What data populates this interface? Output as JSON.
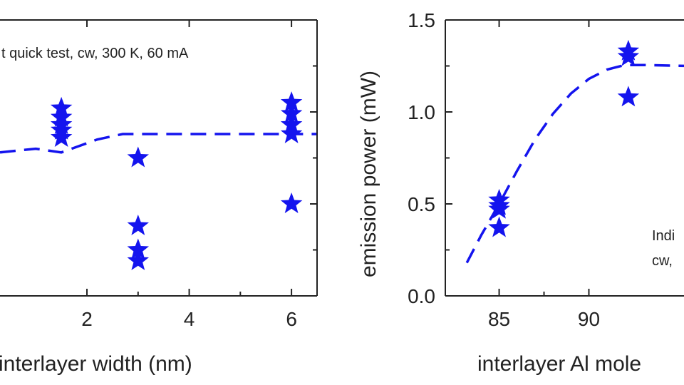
{
  "colors": {
    "marker": "#1414ee",
    "axis": "#222222"
  },
  "chart_data": [
    {
      "type": "scatter",
      "title": "",
      "xlabel": "interlayer width (nm)",
      "ylabel": "",
      "annotation": "t quick test, cw, 300 K, 60 mA",
      "xlim": [
        0.3,
        6.5
      ],
      "ylim": [
        0.0,
        1.5
      ],
      "xticks": [
        {
          "value": 2,
          "label": "2"
        },
        {
          "value": 4,
          "label": "4"
        },
        {
          "value": 6,
          "label": "6"
        }
      ],
      "yticks": [
        0.5,
        1.0
      ],
      "marker": "star",
      "points": [
        {
          "x": 1.5,
          "y": 1.02
        },
        {
          "x": 1.5,
          "y": 0.97
        },
        {
          "x": 1.5,
          "y": 0.93
        },
        {
          "x": 1.5,
          "y": 0.9
        },
        {
          "x": 1.5,
          "y": 0.86
        },
        {
          "x": 3.0,
          "y": 0.75
        },
        {
          "x": 3.0,
          "y": 0.38
        },
        {
          "x": 3.0,
          "y": 0.25
        },
        {
          "x": 3.0,
          "y": 0.19
        },
        {
          "x": 6.0,
          "y": 1.05
        },
        {
          "x": 6.0,
          "y": 0.99
        },
        {
          "x": 6.0,
          "y": 0.93
        },
        {
          "x": 6.0,
          "y": 0.88
        },
        {
          "x": 6.0,
          "y": 0.5
        }
      ],
      "fit": {
        "style": "dashed",
        "points": [
          {
            "x": 0.3,
            "y": 0.78
          },
          {
            "x": 1.0,
            "y": 0.8
          },
          {
            "x": 1.5,
            "y": 0.78
          },
          {
            "x": 1.8,
            "y": 0.81
          },
          {
            "x": 2.2,
            "y": 0.85
          },
          {
            "x": 2.7,
            "y": 0.88
          },
          {
            "x": 3.5,
            "y": 0.88
          },
          {
            "x": 6.5,
            "y": 0.88
          }
        ]
      }
    },
    {
      "type": "scatter",
      "title": "",
      "xlabel": "interlayer Al mole",
      "ylabel": "emission power (mW)",
      "annotation": [
        "Indi",
        "cw,"
      ],
      "xlim": [
        82,
        95.5
      ],
      "ylim": [
        0.0,
        1.5
      ],
      "xticks": [
        {
          "value": 85,
          "label": "85"
        },
        {
          "value": 90,
          "label": "90"
        }
      ],
      "yticks": [
        {
          "value": 0.0,
          "label": "0.0"
        },
        {
          "value": 0.5,
          "label": "0.5"
        },
        {
          "value": 1.0,
          "label": "1.0"
        },
        {
          "value": 1.5,
          "label": "1.5"
        }
      ],
      "marker": "star",
      "points": [
        {
          "x": 85.0,
          "y": 0.52
        },
        {
          "x": 85.0,
          "y": 0.49
        },
        {
          "x": 85.0,
          "y": 0.47
        },
        {
          "x": 85.0,
          "y": 0.37
        },
        {
          "x": 92.2,
          "y": 1.33
        },
        {
          "x": 92.2,
          "y": 1.3
        },
        {
          "x": 92.2,
          "y": 1.08
        }
      ],
      "fit": {
        "style": "dashed",
        "points": [
          {
            "x": 83.2,
            "y": 0.18
          },
          {
            "x": 84.0,
            "y": 0.33
          },
          {
            "x": 85.0,
            "y": 0.5
          },
          {
            "x": 86.0,
            "y": 0.68
          },
          {
            "x": 87.0,
            "y": 0.85
          },
          {
            "x": 88.0,
            "y": 0.99
          },
          {
            "x": 89.0,
            "y": 1.1
          },
          {
            "x": 90.0,
            "y": 1.18
          },
          {
            "x": 91.0,
            "y": 1.23
          },
          {
            "x": 92.0,
            "y": 1.255
          },
          {
            "x": 93.0,
            "y": 1.255
          },
          {
            "x": 95.5,
            "y": 1.25
          }
        ]
      }
    }
  ]
}
